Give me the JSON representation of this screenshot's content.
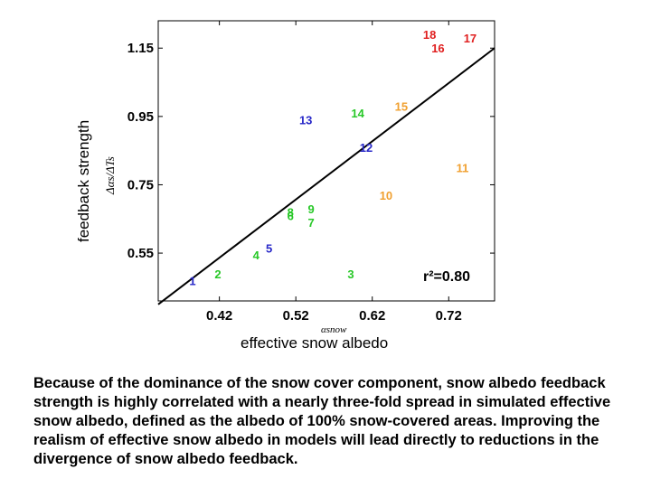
{
  "chart_data": {
    "type": "scatter",
    "xlabel": "effective snow albedo",
    "ylabel": "feedback strength",
    "x_axis_symbol": "αsnow",
    "y_axis_symbol": "Δαs/ΔTs",
    "x_ticks": [
      0.42,
      0.52,
      0.62,
      0.72
    ],
    "y_ticks": [
      0.55,
      0.75,
      0.95,
      1.15
    ],
    "x_tick_labels": [
      "0.42",
      "0.52",
      "0.62",
      "0.72"
    ],
    "y_tick_labels": [
      "0.55",
      "0.75",
      "0.95",
      "1.15"
    ],
    "xlim": [
      0.34,
      0.78
    ],
    "ylim": [
      0.41,
      1.23
    ],
    "grid": false,
    "annotation": "r²=0.80",
    "regression_line": {
      "x": [
        0.34,
        0.78
      ],
      "y": [
        0.4,
        1.15
      ]
    },
    "points": [
      {
        "label": "1",
        "x": 0.385,
        "y": 0.47,
        "color": "#2828c8"
      },
      {
        "label": "2",
        "x": 0.418,
        "y": 0.49,
        "color": "#28c828"
      },
      {
        "label": "3",
        "x": 0.592,
        "y": 0.49,
        "color": "#28c828"
      },
      {
        "label": "4",
        "x": 0.468,
        "y": 0.545,
        "color": "#28c828"
      },
      {
        "label": "5",
        "x": 0.485,
        "y": 0.565,
        "color": "#2828c8"
      },
      {
        "label": "6",
        "x": 0.513,
        "y": 0.66,
        "color": "#28c828"
      },
      {
        "label": "7",
        "x": 0.54,
        "y": 0.64,
        "color": "#28c828"
      },
      {
        "label": "8",
        "x": 0.513,
        "y": 0.67,
        "color": "#28c828"
      },
      {
        "label": "9",
        "x": 0.54,
        "y": 0.68,
        "color": "#28c828"
      },
      {
        "label": "10",
        "x": 0.638,
        "y": 0.72,
        "color": "#f0a030"
      },
      {
        "label": "11",
        "x": 0.738,
        "y": 0.8,
        "color": "#f0a030"
      },
      {
        "label": "12",
        "x": 0.612,
        "y": 0.86,
        "color": "#2828c8"
      },
      {
        "label": "13",
        "x": 0.533,
        "y": 0.94,
        "color": "#2828c8"
      },
      {
        "label": "14",
        "x": 0.601,
        "y": 0.96,
        "color": "#28c828"
      },
      {
        "label": "15",
        "x": 0.658,
        "y": 0.98,
        "color": "#f0a030"
      },
      {
        "label": "16",
        "x": 0.706,
        "y": 1.15,
        "color": "#e02020"
      },
      {
        "label": "17",
        "x": 0.748,
        "y": 1.18,
        "color": "#e02020"
      },
      {
        "label": "18",
        "x": 0.695,
        "y": 1.19,
        "color": "#e02020"
      }
    ]
  },
  "caption": "Because of the dominance of the snow cover component, snow albedo feedback strength is highly correlated with a nearly three-fold spread in simulated effective snow albedo, defined as the albedo of 100% snow-covered areas.  Improving the realism of effective snow albedo in models will lead directly to reductions in the divergence of snow albedo feedback."
}
